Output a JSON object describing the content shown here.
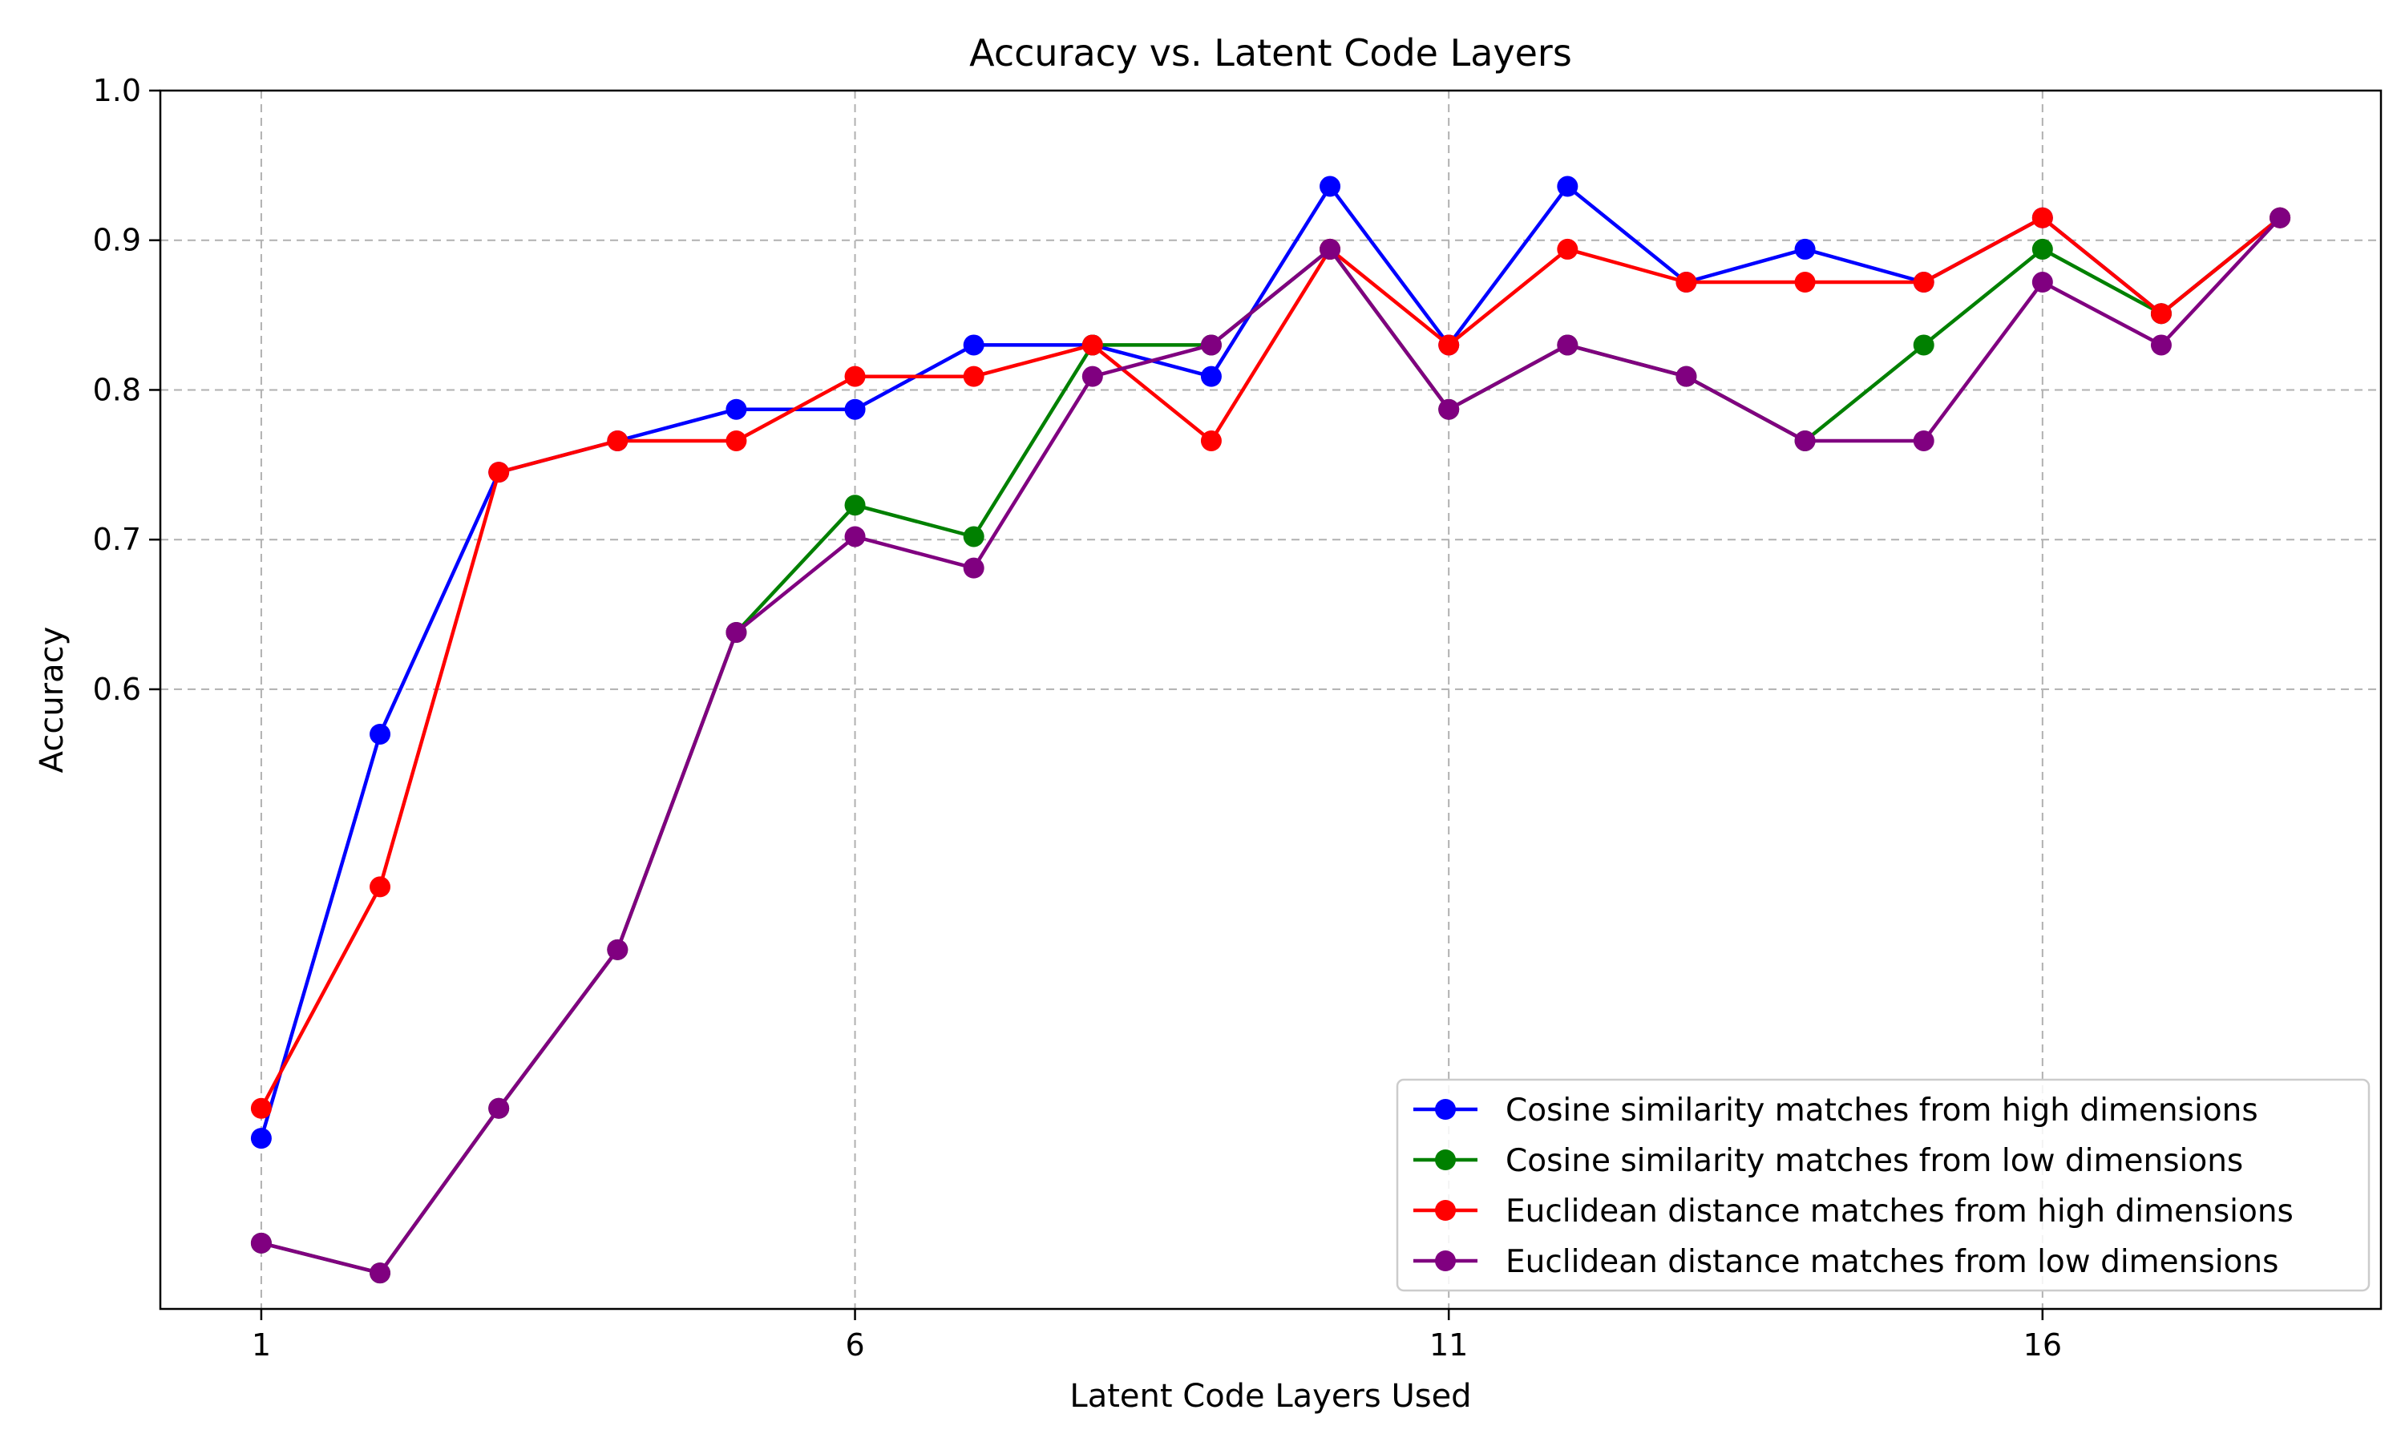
{
  "chart_data": {
    "type": "line",
    "title": "Accuracy vs. Latent Code Layers",
    "xlabel": "Latent Code Layers Used",
    "ylabel": "Accuracy",
    "xlim": [
      0.15,
      18.85
    ],
    "ylim": [
      0.186,
      1.0
    ],
    "xticks": [
      1,
      6,
      11,
      16
    ],
    "yticks": [
      0.6,
      0.7,
      0.8,
      0.9,
      1.0
    ],
    "grid": true,
    "legend_position": "lower right",
    "x": [
      1,
      2,
      3,
      4,
      5,
      6,
      7,
      8,
      9,
      10,
      11,
      12,
      13,
      14,
      15,
      16,
      17,
      18
    ],
    "series": [
      {
        "name": "Cosine similarity matches from high dimensions",
        "color": "#0000ff",
        "values": [
          0.3,
          0.57,
          0.745,
          0.766,
          0.787,
          0.787,
          0.83,
          0.83,
          0.809,
          0.936,
          0.83,
          0.936,
          0.872,
          0.894,
          0.872,
          0.915,
          0.851,
          0.915
        ]
      },
      {
        "name": "Cosine similarity matches from low dimensions",
        "color": "#008000",
        "values": [
          0.23,
          0.21,
          0.32,
          0.426,
          0.638,
          0.723,
          0.702,
          0.83,
          0.83,
          0.894,
          0.787,
          0.83,
          0.809,
          0.766,
          0.83,
          0.894,
          0.851,
          0.915
        ]
      },
      {
        "name": "Euclidean distance matches from high dimensions",
        "color": "#ff0000",
        "values": [
          0.32,
          0.468,
          0.745,
          0.766,
          0.766,
          0.809,
          0.809,
          0.83,
          0.766,
          0.894,
          0.83,
          0.894,
          0.872,
          0.872,
          0.872,
          0.915,
          0.851,
          0.915
        ]
      },
      {
        "name": "Euclidean distance matches from low dimensions",
        "color": "#800080",
        "values": [
          0.23,
          0.21,
          0.32,
          0.426,
          0.638,
          0.702,
          0.681,
          0.809,
          0.83,
          0.894,
          0.787,
          0.83,
          0.809,
          0.766,
          0.766,
          0.872,
          0.83,
          0.915
        ]
      }
    ]
  }
}
